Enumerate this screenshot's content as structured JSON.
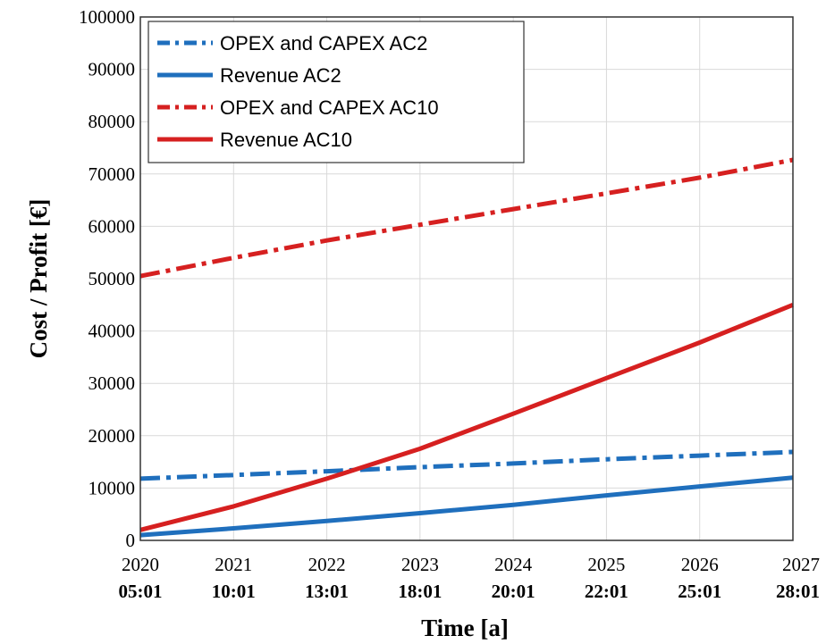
{
  "chart_data": {
    "type": "line",
    "title": "",
    "xlabel": "Time [a]",
    "ylabel": "Cost / Profit [€]",
    "x": [
      2020,
      2021,
      2022,
      2023,
      2024,
      2025,
      2026,
      2027
    ],
    "x_tick_labels": [
      "2020",
      "2021",
      "2022",
      "2023",
      "2024",
      "2025",
      "2026",
      "2027"
    ],
    "x_tick_sublabels": [
      "05:01",
      "10:01",
      "13:01",
      "18:01",
      "20:01",
      "22:01",
      "25:01",
      "28:01"
    ],
    "xlim": [
      2020,
      2027
    ],
    "ylim": [
      0,
      100000
    ],
    "y_ticks": [
      0,
      10000,
      20000,
      30000,
      40000,
      50000,
      60000,
      70000,
      80000,
      90000,
      100000
    ],
    "grid": true,
    "legend_position": "top-left",
    "series": [
      {
        "name": "OPEX and CAPEX AC2",
        "color": "#1f6fbd",
        "style": "dashdot",
        "values": [
          11800,
          12500,
          13200,
          14000,
          14700,
          15500,
          16200,
          16900
        ]
      },
      {
        "name": "Revenue AC2",
        "color": "#1f6fbd",
        "style": "solid",
        "values": [
          1000,
          2300,
          3700,
          5200,
          6800,
          8600,
          10300,
          12000
        ]
      },
      {
        "name": "OPEX and CAPEX AC10",
        "color": "#d62020",
        "style": "dashdot",
        "values": [
          50500,
          54000,
          57300,
          60300,
          63300,
          66300,
          69300,
          72700
        ]
      },
      {
        "name": "Revenue AC10",
        "color": "#d62020",
        "style": "solid",
        "values": [
          2000,
          6500,
          11800,
          17500,
          24200,
          31000,
          37800,
          45000
        ]
      }
    ]
  }
}
